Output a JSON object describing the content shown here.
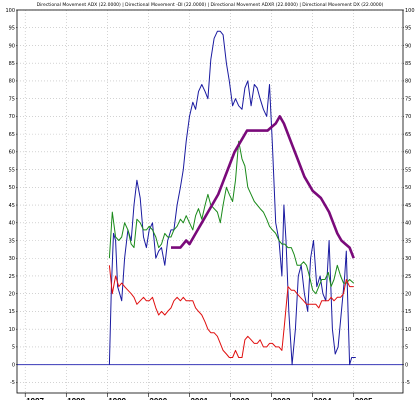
{
  "chart_data": {
    "type": "line",
    "title": "Directional Movement ADX (22.0000) | Directional Movement -DI (22.0000) | Directional Movement ADXR (22.0000) | Directional Movement DX (22.0000)",
    "xlabel": "",
    "ylabel": "",
    "x_ticks": [
      "1997",
      "1998",
      "1999",
      "2000",
      "2001",
      "2002",
      "2003",
      "2004",
      "2005"
    ],
    "y_ticks": [
      -5,
      0,
      5,
      10,
      15,
      20,
      25,
      30,
      35,
      40,
      45,
      50,
      55,
      60,
      65,
      70,
      75,
      80,
      85,
      90,
      95,
      100
    ],
    "ylim": [
      -8,
      100
    ],
    "xlim": [
      1996.8,
      2006.2
    ],
    "grid": true,
    "reference_line": 0,
    "series": [
      {
        "color": "#1a1aa0",
        "x": [
          1999.05,
          1999.1,
          1999.15,
          1999.2,
          1999.25,
          1999.3,
          1999.35,
          1999.42,
          1999.5,
          1999.58,
          1999.65,
          1999.72,
          1999.8,
          1999.88,
          1999.95,
          2000.02,
          2000.1,
          2000.18,
          2000.25,
          2000.32,
          2000.4,
          2000.47,
          2000.55,
          2000.62,
          2000.7,
          2000.78,
          2000.85,
          2000.92,
          2001.0,
          2001.08,
          2001.15,
          2001.22,
          2001.3,
          2001.38,
          2001.45,
          2001.52,
          2001.6,
          2001.68,
          2001.75,
          2001.82,
          2001.9,
          2001.97,
          2002.05,
          2002.12,
          2002.2,
          2002.28,
          2002.35,
          2002.42,
          2002.5,
          2002.58,
          2002.65,
          2002.72,
          2002.8,
          2002.88,
          2002.95,
          2003.02,
          2003.1,
          2003.18,
          2003.25,
          2003.3,
          2003.35,
          2003.42,
          2003.5,
          2003.58,
          2003.65,
          2003.72,
          2003.8,
          2003.88,
          2003.95,
          2004.02,
          2004.1,
          2004.18,
          2004.25,
          2004.32,
          2004.4,
          2004.48,
          2004.55,
          2004.62,
          2004.7,
          2004.78,
          2004.82,
          2004.9,
          2004.95,
          2005.05
        ],
        "y": [
          0,
          22,
          37,
          35,
          22,
          20,
          18,
          30,
          38,
          35,
          45,
          52,
          47,
          36,
          33,
          38,
          40,
          30,
          32,
          33,
          28,
          35,
          38,
          38,
          45,
          50,
          55,
          63,
          70,
          74,
          72,
          77,
          79,
          77,
          75,
          86,
          92,
          94,
          94,
          93,
          85,
          80,
          73,
          75,
          73,
          72,
          78,
          80,
          73,
          79,
          78,
          75,
          72,
          70,
          79,
          62,
          40,
          35,
          25,
          45,
          35,
          15,
          0,
          10,
          25,
          28,
          20,
          15,
          30,
          35,
          22,
          25,
          20,
          18,
          35,
          10,
          3,
          5,
          15,
          25,
          32,
          0,
          2,
          2
        ]
      },
      {
        "color": "#1a8a1a",
        "x": [
          1999.05,
          1999.12,
          1999.2,
          1999.28,
          1999.35,
          1999.42,
          1999.5,
          1999.58,
          1999.65,
          1999.72,
          1999.8,
          1999.88,
          1999.95,
          2000.02,
          2000.1,
          2000.18,
          2000.25,
          2000.32,
          2000.4,
          2000.47,
          2000.55,
          2000.62,
          2000.7,
          2000.78,
          2000.85,
          2000.92,
          2001.0,
          2001.08,
          2001.15,
          2001.22,
          2001.3,
          2001.38,
          2001.45,
          2001.52,
          2001.6,
          2001.68,
          2001.75,
          2001.82,
          2001.9,
          2001.97,
          2002.05,
          2002.12,
          2002.2,
          2002.28,
          2002.35,
          2002.42,
          2002.5,
          2002.58,
          2002.65,
          2002.72,
          2002.8,
          2002.88,
          2002.95,
          2003.02,
          2003.1,
          2003.18,
          2003.25,
          2003.32,
          2003.4,
          2003.48,
          2003.55,
          2003.62,
          2003.7,
          2003.78,
          2003.85,
          2003.92,
          2004.0,
          2004.08,
          2004.15,
          2004.22,
          2004.3,
          2004.38,
          2004.45,
          2004.52,
          2004.6,
          2004.68,
          2004.75,
          2004.82,
          2004.9,
          2005.0
        ],
        "y": [
          30,
          43,
          36,
          35,
          36,
          40,
          38,
          34,
          33,
          41,
          40,
          38,
          38,
          39,
          38,
          36,
          33,
          34,
          37,
          36,
          36,
          38,
          39,
          41,
          40,
          42,
          40,
          38,
          42,
          44,
          41,
          45,
          48,
          45,
          44,
          43,
          40,
          45,
          50,
          48,
          46,
          52,
          63,
          58,
          56,
          50,
          48,
          46,
          45,
          44,
          43,
          41,
          39,
          38,
          37,
          35,
          34,
          34,
          33,
          33,
          31,
          28,
          28,
          29,
          28,
          25,
          21,
          20,
          22,
          24,
          24,
          26,
          22,
          24,
          28,
          25,
          23,
          23,
          24,
          23
        ]
      },
      {
        "color": "#e01010",
        "x": [
          1999.05,
          1999.12,
          1999.2,
          1999.28,
          1999.35,
          1999.42,
          1999.5,
          1999.58,
          1999.65,
          1999.72,
          1999.8,
          1999.88,
          1999.95,
          2000.02,
          2000.1,
          2000.18,
          2000.25,
          2000.32,
          2000.4,
          2000.47,
          2000.55,
          2000.62,
          2000.7,
          2000.78,
          2000.85,
          2000.92,
          2001.0,
          2001.08,
          2001.15,
          2001.22,
          2001.3,
          2001.38,
          2001.45,
          2001.52,
          2001.6,
          2001.68,
          2001.75,
          2001.82,
          2001.9,
          2001.97,
          2002.05,
          2002.12,
          2002.2,
          2002.28,
          2002.35,
          2002.42,
          2002.5,
          2002.58,
          2002.65,
          2002.72,
          2002.8,
          2002.88,
          2002.95,
          2003.02,
          2003.1,
          2003.18,
          2003.25,
          2003.32,
          2003.4,
          2003.48,
          2003.55,
          2003.62,
          2003.7,
          2003.78,
          2003.85,
          2003.92,
          2004.0,
          2004.08,
          2004.15,
          2004.22,
          2004.3,
          2004.38,
          2004.45,
          2004.52,
          2004.6,
          2004.68,
          2004.75,
          2004.82,
          2004.9,
          2005.0
        ],
        "y": [
          28,
          20,
          25,
          22,
          23,
          22,
          21,
          20,
          19,
          17,
          18,
          19,
          18,
          18,
          19,
          16,
          14,
          15,
          14,
          15,
          16,
          18,
          19,
          18,
          19,
          18,
          18,
          18,
          16,
          15,
          14,
          12,
          10,
          9,
          9,
          8,
          6,
          4,
          3,
          2,
          2,
          4,
          2,
          2,
          7,
          8,
          7,
          6,
          6,
          7,
          5,
          5,
          6,
          6,
          5,
          5,
          4,
          12,
          22,
          21,
          21,
          20,
          19,
          18,
          17,
          17,
          17,
          17,
          16,
          18,
          18,
          18,
          19,
          18,
          19,
          19,
          20,
          24,
          22,
          22
        ]
      },
      {
        "color": "#7a0a7a",
        "x": [
          2000.55,
          2000.62,
          2000.7,
          2000.78,
          2000.85,
          2000.92,
          2001.0,
          2001.1,
          2001.2,
          2001.3,
          2001.4,
          2001.5,
          2001.6,
          2001.7,
          2001.8,
          2001.9,
          2002.0,
          2002.1,
          2002.2,
          2002.3,
          2002.4,
          2002.5,
          2002.6,
          2002.7,
          2002.8,
          2002.9,
          2003.0,
          2003.1,
          2003.2,
          2003.3,
          2003.4,
          2003.5,
          2003.6,
          2003.7,
          2003.8,
          2003.9,
          2004.0,
          2004.1,
          2004.2,
          2004.3,
          2004.4,
          2004.5,
          2004.6,
          2004.7,
          2004.8,
          2004.9,
          2005.0
        ],
        "y": [
          33,
          33,
          33,
          33,
          34,
          35,
          34,
          36,
          38,
          40,
          42,
          44,
          46,
          48,
          51,
          54,
          57,
          60,
          62,
          64,
          66,
          66,
          66,
          66,
          66,
          66,
          67,
          68,
          70,
          68,
          65,
          62,
          59,
          56,
          53,
          51,
          49,
          48,
          47,
          45,
          43,
          40,
          37,
          35,
          34,
          33,
          30
        ]
      }
    ]
  }
}
